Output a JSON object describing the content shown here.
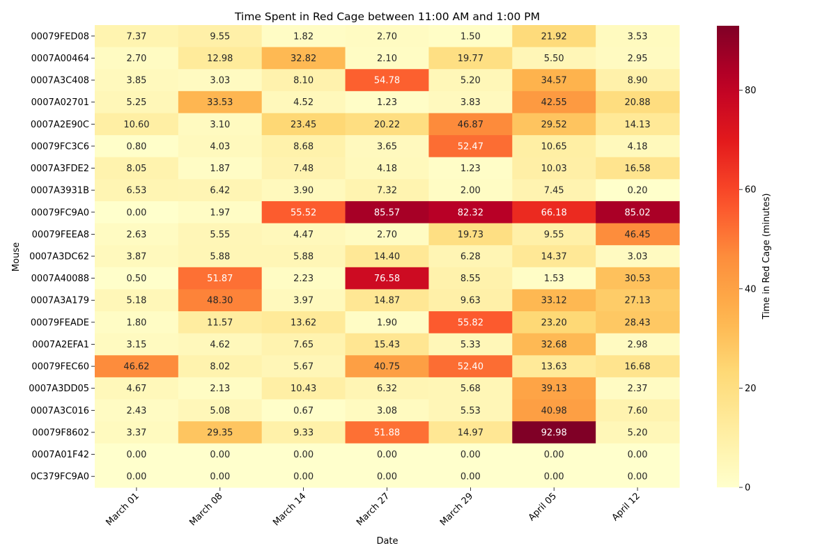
{
  "chart_data": {
    "type": "heatmap",
    "title": "Time Spent in Red Cage between 11:00 AM and 1:00 PM",
    "xlabel": "Date",
    "ylabel": "Mouse",
    "colorbar_label": "Time in Red Cage (minutes)",
    "colormap": "YlOrRd",
    "vmin": 0,
    "vmax": 92.98,
    "colorbar_ticks": [
      0,
      20,
      40,
      60,
      80
    ],
    "columns": [
      "March 01",
      "March 08",
      "March 14",
      "March 27",
      "March 29",
      "April 05",
      "April 12"
    ],
    "rows": [
      "00079FED08",
      "0007A00464",
      "0007A3C408",
      "0007A02701",
      "0007A2E90C",
      "00079FC3C6",
      "0007A3FDE2",
      "0007A3931B",
      "00079FC9A0",
      "00079FEEA8",
      "0007A3DC62",
      "0007A40088",
      "0007A3A179",
      "00079FEADE",
      "0007A2EFA1",
      "00079FEC60",
      "0007A3DD05",
      "0007A3C016",
      "00079F8602",
      "0007A01F42",
      "0C379FC9A0"
    ],
    "values": [
      [
        7.37,
        9.55,
        1.82,
        2.7,
        1.5,
        21.92,
        3.53
      ],
      [
        2.7,
        12.98,
        32.82,
        2.1,
        19.77,
        5.5,
        2.95
      ],
      [
        3.85,
        3.03,
        8.1,
        54.78,
        5.2,
        34.57,
        8.9
      ],
      [
        5.25,
        33.53,
        4.52,
        1.23,
        3.83,
        42.55,
        20.88
      ],
      [
        10.6,
        3.1,
        23.45,
        20.22,
        46.87,
        29.52,
        14.13
      ],
      [
        0.8,
        4.03,
        8.68,
        3.65,
        52.47,
        10.65,
        4.18
      ],
      [
        8.05,
        1.87,
        7.48,
        4.18,
        1.23,
        10.03,
        16.58
      ],
      [
        6.53,
        6.42,
        3.9,
        7.32,
        2.0,
        7.45,
        0.2
      ],
      [
        0.0,
        1.97,
        55.52,
        85.57,
        82.32,
        66.18,
        85.02
      ],
      [
        2.63,
        5.55,
        4.47,
        2.7,
        19.73,
        9.55,
        46.45
      ],
      [
        3.87,
        5.88,
        5.88,
        14.4,
        6.28,
        14.37,
        3.03
      ],
      [
        0.5,
        51.87,
        2.23,
        76.58,
        8.55,
        1.53,
        30.53
      ],
      [
        5.18,
        48.3,
        3.97,
        14.87,
        9.63,
        33.12,
        27.13
      ],
      [
        1.8,
        11.57,
        13.62,
        1.9,
        55.82,
        23.2,
        28.43
      ],
      [
        3.15,
        4.62,
        7.65,
        15.43,
        5.33,
        32.68,
        2.98
      ],
      [
        46.62,
        8.02,
        5.67,
        40.75,
        52.4,
        13.63,
        16.68
      ],
      [
        4.67,
        2.13,
        10.43,
        6.32,
        5.68,
        39.13,
        2.37
      ],
      [
        2.43,
        5.08,
        0.67,
        3.08,
        5.53,
        40.98,
        7.6
      ],
      [
        3.37,
        29.35,
        9.33,
        51.88,
        14.97,
        92.98,
        5.2
      ],
      [
        0.0,
        0.0,
        0.0,
        0.0,
        0.0,
        0.0,
        0.0
      ],
      [
        0.0,
        0.0,
        0.0,
        0.0,
        0.0,
        0.0,
        0.0
      ]
    ],
    "grid": false,
    "legend_position": "right"
  }
}
